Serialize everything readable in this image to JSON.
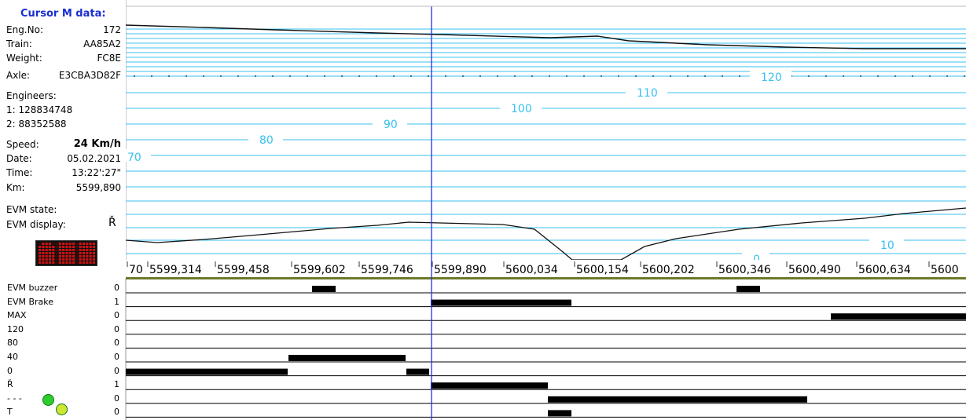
{
  "cursor_panel": {
    "title": "Cursor M data:",
    "eng_no_label": "Eng.No:",
    "eng_no": "172",
    "train_label": "Train:",
    "train": "AA85A2",
    "weight_label": "Weight:",
    "weight": "FC8E",
    "axle_label": "Axle:",
    "axle": "E3CBA3D82F",
    "engineers_label": "Engineers:",
    "engineer1": "1: 128834748",
    "engineer2": "2: 88352588",
    "speed_label": "Speed:",
    "speed": "24 Km/h",
    "date_label": "Date:",
    "date": "05.02.2021",
    "time_label": "Time:",
    "time": "13:22':27\"",
    "km_label": "Km:",
    "km": "5599,890",
    "evm_state_label": "EVM state:",
    "evm_display_label": "EVM display:",
    "evm_display": "Ř"
  },
  "speed_scale_labels": [
    "70",
    "80",
    "90",
    "100",
    "110",
    "120",
    "10",
    "0"
  ],
  "km_ticks": [
    "70",
    "5599,314",
    "5599,458",
    "5599,602",
    "5599,746",
    "5599,890",
    "5600,034",
    "5600,154",
    "5600,202",
    "5600,346",
    "5600,490",
    "5600,634",
    "5600"
  ],
  "signals": [
    {
      "name": "EVM buzzer",
      "value": "0"
    },
    {
      "name": "EVM Brake",
      "value": "1"
    },
    {
      "name": "MAX",
      "value": "0"
    },
    {
      "name": "120",
      "value": "0"
    },
    {
      "name": " 80",
      "value": "0"
    },
    {
      "name": " 40",
      "value": "0"
    },
    {
      "name": " 0",
      "value": "0"
    },
    {
      "name": " Ř",
      "value": "1"
    },
    {
      "name": " - - -",
      "value": "0"
    },
    {
      "name": " T",
      "value": "0"
    }
  ],
  "colors": {
    "scale_line": "#38c0f0",
    "cursor": "#2233dd",
    "title": "#1a2fd0",
    "track_bar": "#6b7a2a",
    "signal_on": "#000000",
    "led_on": "#cc1111"
  }
}
